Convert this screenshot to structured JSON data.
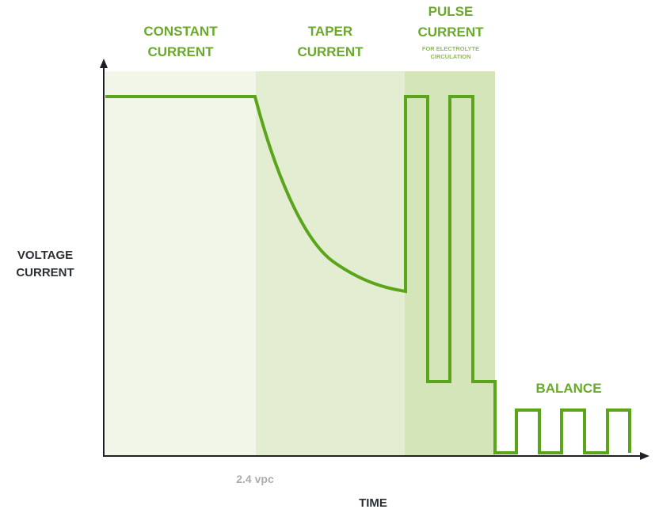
{
  "phases": {
    "constant": {
      "line1": "CONSTANT",
      "line2": "CURRENT"
    },
    "taper": {
      "line1": "TAPER",
      "line2": "CURRENT"
    },
    "pulse": {
      "line1": "PULSE",
      "line2": "CURRENT",
      "sub1": "FOR ELECTROLYTE",
      "sub2": "CIRCULATION"
    },
    "balance": {
      "label": "BALANCE"
    }
  },
  "axes": {
    "y_line1": "VOLTAGE",
    "y_line2": "CURRENT",
    "x_label": "TIME",
    "x_note": "2.4 vpc"
  },
  "colors": {
    "line": "#5aa51a",
    "label": "#6aaa2a",
    "band_constant": "#f2f6e9",
    "band_taper": "#e2edd2",
    "band_pulse": "#d3e5b9",
    "axis": "#1d2127"
  }
}
